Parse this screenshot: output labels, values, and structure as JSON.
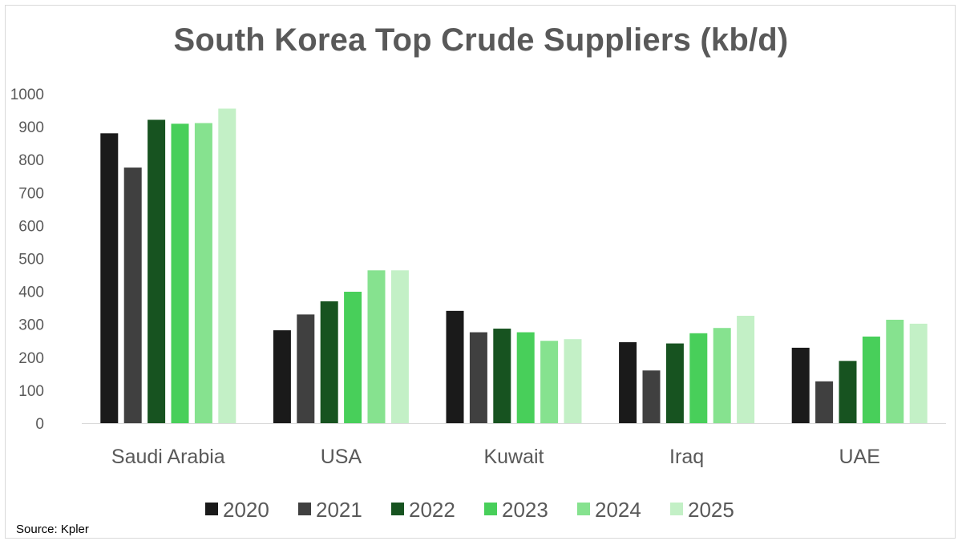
{
  "chart_data": {
    "type": "bar",
    "title": "South Korea Top Crude Suppliers (kb/d)",
    "xlabel": "",
    "ylabel": "",
    "ylim": [
      0,
      1000
    ],
    "yticks": [
      0,
      100,
      200,
      300,
      400,
      500,
      600,
      700,
      800,
      900,
      1000
    ],
    "grid": false,
    "legend_position": "bottom",
    "categories": [
      "Saudi Arabia",
      "USA",
      "Kuwait",
      "Iraq",
      "UAE"
    ],
    "series": [
      {
        "name": "2020",
        "color": "#1a1a1a",
        "values": [
          880,
          282,
          341,
          246,
          229
        ]
      },
      {
        "name": "2021",
        "color": "#404040",
        "values": [
          776,
          330,
          276,
          160,
          127
        ]
      },
      {
        "name": "2022",
        "color": "#175320",
        "values": [
          921,
          370,
          287,
          242,
          189
        ]
      },
      {
        "name": "2023",
        "color": "#48cf5a",
        "values": [
          909,
          399,
          276,
          273,
          263
        ]
      },
      {
        "name": "2024",
        "color": "#86e28f",
        "values": [
          911,
          464,
          250,
          289,
          314
        ]
      },
      {
        "name": "2025",
        "color": "#c3f0c6",
        "values": [
          955,
          464,
          255,
          326,
          302
        ]
      }
    ]
  },
  "footer": {
    "source": "Source: Kpler"
  }
}
